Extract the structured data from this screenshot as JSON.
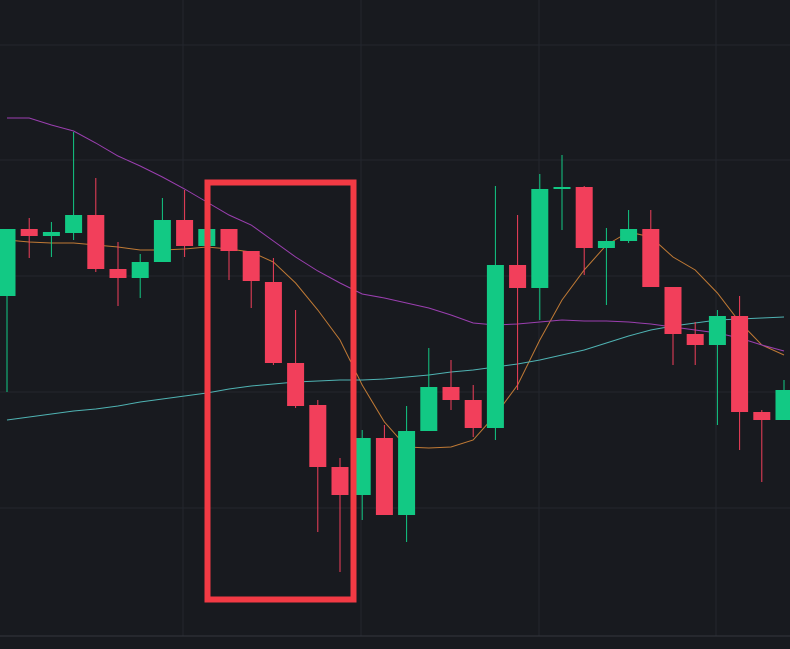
{
  "chart_data": {
    "type": "candlestick",
    "ylim": [
      0,
      649
    ],
    "up_color": "#12c984",
    "down_color": "#f23f5b",
    "open": [
      353,
      420,
      413,
      416,
      434,
      380,
      371,
      387,
      429,
      403,
      420,
      398,
      367,
      286,
      244,
      182,
      154,
      211,
      134,
      218,
      262,
      249,
      221,
      384,
      361,
      460,
      462,
      401,
      408,
      420,
      362,
      315,
      304,
      333,
      237,
      229
    ],
    "high": [
      420,
      431,
      427,
      517,
      471,
      407,
      395,
      451,
      459,
      420,
      420,
      398,
      391,
      339,
      249,
      191,
      219,
      224,
      243,
      301,
      289,
      264,
      463,
      434,
      475,
      494,
      463,
      421,
      439,
      439,
      362,
      327,
      339,
      353,
      239,
      269
    ],
    "low": [
      257,
      391,
      392,
      409,
      377,
      343,
      351,
      387,
      392,
      399,
      369,
      341,
      284,
      241,
      117,
      77,
      129,
      134,
      107,
      218,
      239,
      212,
      209,
      259,
      329,
      419,
      374,
      344,
      406,
      362,
      284,
      284,
      224,
      199,
      167,
      229
    ],
    "close": [
      420,
      413,
      417,
      434,
      380,
      371,
      387,
      429,
      403,
      420,
      398,
      368,
      286,
      243,
      182,
      154,
      211,
      134,
      218,
      262,
      249,
      221,
      384,
      361,
      460,
      462,
      401,
      408,
      420,
      362,
      315,
      304,
      333,
      237,
      229,
      259
    ],
    "lines": [
      {
        "color": "#c07a35",
        "values": [
          409,
          407,
          406,
          406,
          404,
          402,
          399,
          399,
          400,
          402,
          400,
          397,
          387,
          366,
          339,
          309,
          264,
          227,
          202,
          201,
          202,
          209,
          234,
          264,
          309,
          349,
          379,
          404,
          417,
          412,
          392,
          379,
          356,
          327,
          304,
          294
        ]
      },
      {
        "color": "#4fb3b3",
        "values": [
          229,
          232,
          235,
          238,
          240,
          243,
          247,
          250,
          253,
          256,
          260,
          263,
          265,
          267,
          268,
          269,
          269,
          270,
          272,
          274,
          277,
          279,
          282,
          285,
          289,
          294,
          299,
          306,
          313,
          319,
          323,
          326,
          329,
          330,
          331,
          332
        ]
      },
      {
        "color": "#9b3fb0",
        "values": [
          531,
          531,
          524,
          518,
          506,
          493,
          483,
          472,
          460,
          447,
          434,
          424,
          408,
          392,
          378,
          366,
          355,
          351,
          346,
          341,
          334,
          326,
          324,
          325,
          327,
          329,
          328,
          328,
          327,
          325,
          322,
          319,
          316,
          311,
          304,
          298
        ]
      }
    ]
  }
}
